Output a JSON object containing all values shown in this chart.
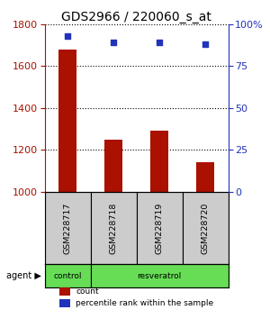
{
  "title": "GDS2966 / 220060_s_at",
  "samples": [
    "GSM228717",
    "GSM228718",
    "GSM228719",
    "GSM228720"
  ],
  "counts": [
    1680,
    1250,
    1290,
    1140
  ],
  "percentiles": [
    93,
    89,
    89,
    88
  ],
  "ylim_left": [
    1000,
    1800
  ],
  "yticks_left": [
    1000,
    1200,
    1400,
    1600,
    1800
  ],
  "ylim_right": [
    0,
    100
  ],
  "yticks_right": [
    0,
    25,
    50,
    75,
    100
  ],
  "bar_color": "#aa1100",
  "dot_color": "#2233bb",
  "group_colors": {
    "control": "#66dd55",
    "resveratrol": "#66dd55"
  },
  "legend_count_label": "count",
  "legend_pct_label": "percentile rank within the sample",
  "title_fontsize": 10,
  "tick_fontsize": 8,
  "bar_width": 0.4,
  "background_color": "#ffffff",
  "plot_bg_color": "#ffffff",
  "sample_label_bg": "#cccccc"
}
